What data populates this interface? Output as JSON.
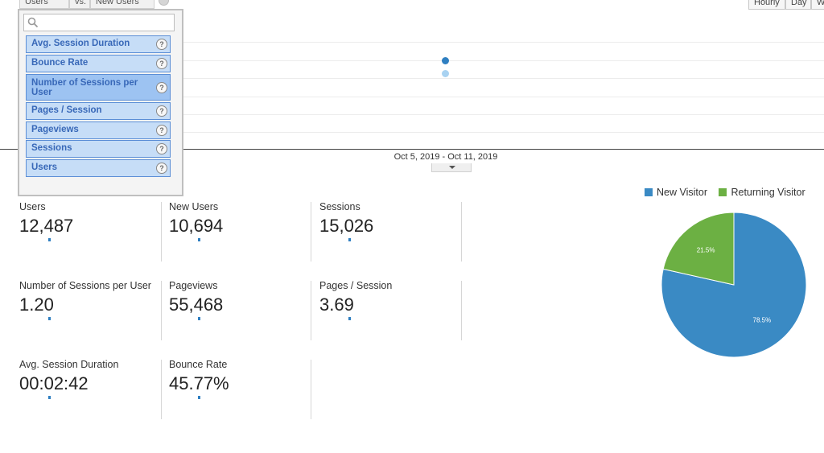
{
  "top_controls": {
    "segment_tabs": [
      "Users",
      "vs.",
      "New Users"
    ],
    "period_buttons": [
      "Hourly",
      "Day",
      "W"
    ]
  },
  "chart": {
    "period_label": "Oct 5, 2019 - Oct 11, 2019"
  },
  "dropdown": {
    "search_value": "",
    "help_glyph": "?",
    "options": [
      {
        "label": "Avg. Session Duration",
        "highlighted": false
      },
      {
        "label": "Bounce Rate",
        "highlighted": false
      },
      {
        "label": "Number of Sessions per User",
        "highlighted": true
      },
      {
        "label": "Pages / Session",
        "highlighted": false
      },
      {
        "label": "Pageviews",
        "highlighted": false
      },
      {
        "label": "Sessions",
        "highlighted": false
      },
      {
        "label": "Users",
        "highlighted": false
      }
    ]
  },
  "metrics": [
    {
      "label": "Users",
      "value": "12,487"
    },
    {
      "label": "New Users",
      "value": "10,694"
    },
    {
      "label": "Sessions",
      "value": "15,026"
    },
    {
      "label": "Number of Sessions per User",
      "value": "1.20"
    },
    {
      "label": "Pageviews",
      "value": "55,468"
    },
    {
      "label": "Pages / Session",
      "value": "3.69"
    },
    {
      "label": "Avg. Session Duration",
      "value": "00:02:42"
    },
    {
      "label": "Bounce Rate",
      "value": "45.77%"
    }
  ],
  "legend": [
    {
      "label": "New Visitor",
      "color": "#3a8ac4"
    },
    {
      "label": "Returning Visitor",
      "color": "#6cb043"
    }
  ],
  "chart_data": {
    "type": "pie",
    "categories": [
      "New Visitor",
      "Returning Visitor"
    ],
    "values": [
      78.5,
      21.5
    ],
    "value_labels": [
      "78.5%",
      "21.5%"
    ],
    "colors": [
      "#3a8ac4",
      "#6cb043"
    ]
  }
}
